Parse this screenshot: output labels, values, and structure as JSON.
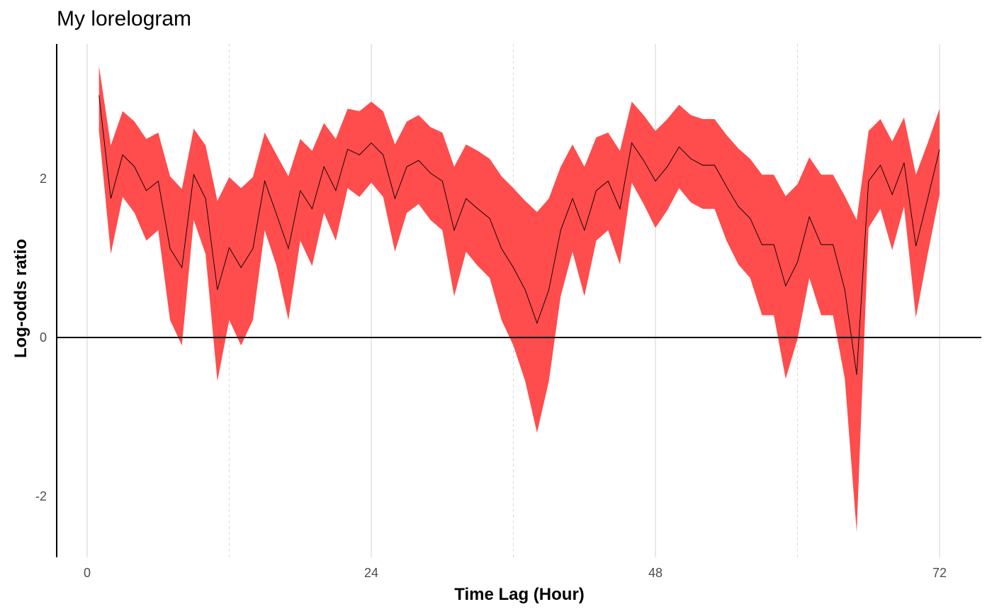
{
  "chart_data": {
    "type": "area",
    "title": "My lorelogram",
    "xlabel": "Time Lag (Hour)",
    "ylabel": "Log-odds ratio",
    "xlim": [
      -2.5,
      73.5
    ],
    "ylim": [
      -2.7,
      3.7
    ],
    "x_ticks": [
      0,
      24,
      48,
      72
    ],
    "x_tick_labels": [
      "0",
      "24",
      "48",
      "72"
    ],
    "x_minor_gridlines": [
      12,
      36,
      60
    ],
    "y_ticks": [
      -2,
      0,
      2
    ],
    "y_tick_labels": [
      "-2",
      "0",
      "2"
    ],
    "reference_line_y": 0,
    "grid": "vertical only",
    "colors": {
      "ribbon": "#FF4C4C",
      "line": "#000000",
      "grid_major": "#d0d0d0",
      "grid_minor": "#d9d9d9"
    },
    "series": [
      {
        "x": [
          1,
          2,
          3,
          4,
          5,
          6,
          7,
          8,
          9,
          10,
          11,
          12,
          13,
          14,
          15,
          16,
          17,
          18,
          19,
          20,
          21,
          22,
          23,
          24,
          25,
          26,
          27,
          28,
          29,
          30,
          31,
          32,
          33,
          34,
          35,
          36,
          37,
          38,
          39,
          40,
          41,
          42,
          43,
          44,
          45,
          46,
          47,
          48,
          49,
          50,
          51,
          52,
          53,
          54,
          55,
          56,
          57,
          58,
          59,
          60,
          61,
          62,
          63,
          64,
          65,
          66,
          67,
          68,
          69,
          70,
          71,
          72
        ],
        "y": [
          3.05,
          1.75,
          2.3,
          2.15,
          1.85,
          1.97,
          1.12,
          0.88,
          2.05,
          1.75,
          0.6,
          1.13,
          0.88,
          1.12,
          1.97,
          1.55,
          1.12,
          1.85,
          1.62,
          2.15,
          1.85,
          2.37,
          2.3,
          2.45,
          2.3,
          1.75,
          2.15,
          2.23,
          2.07,
          1.97,
          1.35,
          1.75,
          1.62,
          1.5,
          1.12,
          0.88,
          0.6,
          0.18,
          0.6,
          1.35,
          1.75,
          1.35,
          1.85,
          1.97,
          1.62,
          2.45,
          2.23,
          1.97,
          2.15,
          2.4,
          2.25,
          2.17,
          2.17,
          1.9,
          1.65,
          1.5,
          1.17,
          1.17,
          0.65,
          0.95,
          1.52,
          1.17,
          1.17,
          0.6,
          -0.47,
          1.97,
          2.17,
          1.8,
          2.2,
          1.15,
          1.75,
          2.37
        ],
        "lower": [
          2.6,
          1.05,
          1.77,
          1.57,
          1.22,
          1.35,
          0.22,
          -0.1,
          1.48,
          1.05,
          -0.55,
          0.22,
          -0.1,
          0.22,
          1.35,
          0.9,
          0.22,
          1.22,
          0.9,
          1.57,
          1.22,
          1.88,
          1.77,
          1.95,
          1.77,
          1.08,
          1.57,
          1.68,
          1.48,
          1.35,
          0.52,
          1.08,
          0.9,
          0.75,
          0.22,
          -0.1,
          -0.55,
          -1.2,
          -0.55,
          0.52,
          1.08,
          0.52,
          1.22,
          1.35,
          0.92,
          1.95,
          1.68,
          1.38,
          1.6,
          1.88,
          1.7,
          1.62,
          1.62,
          1.22,
          0.92,
          0.75,
          0.28,
          0.28,
          -0.52,
          -0.02,
          0.75,
          0.28,
          0.28,
          -0.52,
          -2.45,
          1.38,
          1.62,
          1.1,
          1.65,
          0.25,
          1.05,
          1.8
        ],
        "upper": [
          3.42,
          2.42,
          2.85,
          2.72,
          2.5,
          2.58,
          2.03,
          1.87,
          2.63,
          2.42,
          1.72,
          2.02,
          1.88,
          2.02,
          2.58,
          2.3,
          2.03,
          2.5,
          2.35,
          2.7,
          2.5,
          2.88,
          2.85,
          2.97,
          2.85,
          2.43,
          2.72,
          2.8,
          2.65,
          2.58,
          2.15,
          2.43,
          2.35,
          2.25,
          2.03,
          1.88,
          1.72,
          1.58,
          1.75,
          2.15,
          2.43,
          2.15,
          2.52,
          2.58,
          2.35,
          2.97,
          2.8,
          2.6,
          2.75,
          2.93,
          2.8,
          2.75,
          2.75,
          2.55,
          2.38,
          2.25,
          2.05,
          2.05,
          1.78,
          1.93,
          2.27,
          2.05,
          2.05,
          1.78,
          1.48,
          2.6,
          2.75,
          2.47,
          2.77,
          2.05,
          2.45,
          2.88
        ]
      }
    ]
  }
}
